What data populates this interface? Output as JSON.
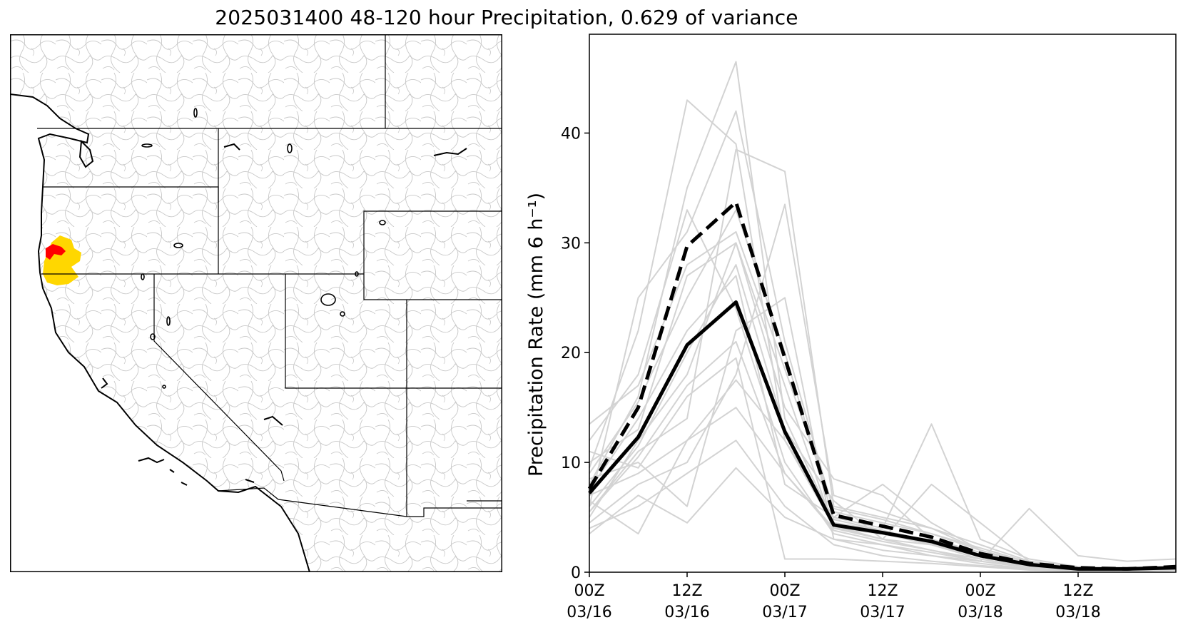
{
  "figure": {
    "title": "2025031400 48-120 hour Precipitation, 0.629 of variance"
  },
  "map": {
    "highlight_colors": {
      "gold": "#ffd700",
      "red": "#ff0000"
    },
    "basin_line_color": "#bdbdbd"
  },
  "chart_data": {
    "type": "line",
    "title": "",
    "xlabel": "",
    "ylabel": "Precipitation Rate (mm 6 h⁻¹)",
    "ylim": [
      0,
      49
    ],
    "yticks": [
      0,
      10,
      20,
      30,
      40
    ],
    "x": [
      "03/16 00Z",
      "03/16 06Z",
      "03/16 12Z",
      "03/16 18Z",
      "03/17 00Z",
      "03/17 06Z",
      "03/17 12Z",
      "03/17 18Z",
      "03/18 00Z",
      "03/18 06Z",
      "03/18 12Z",
      "03/18 18Z",
      "03/19 00Z"
    ],
    "xticks": [
      {
        "line1": "00Z",
        "line2": "03/16"
      },
      {
        "line1": "12Z",
        "line2": "03/16"
      },
      {
        "line1": "00Z",
        "line2": "03/17"
      },
      {
        "line1": "12Z",
        "line2": "03/17"
      },
      {
        "line1": "00Z",
        "line2": "03/18"
      },
      {
        "line1": "12Z",
        "line2": "03/18"
      }
    ],
    "grid": false,
    "series": [
      {
        "style": "solid-thick",
        "color": "#000000",
        "values": [
          7.2,
          12.3,
          20.7,
          24.6,
          12.8,
          4.3,
          3.6,
          2.8,
          1.5,
          0.7,
          0.3,
          0.3,
          0.4
        ]
      },
      {
        "style": "dashed-thick",
        "color": "#000000",
        "values": [
          7.6,
          15.0,
          29.7,
          33.7,
          19.5,
          5.2,
          4.2,
          3.2,
          1.7,
          0.8,
          0.4,
          0.3,
          0.5
        ]
      },
      {
        "style": "member",
        "color": "#d3d3d3",
        "values": [
          7.0,
          9.0,
          12.0,
          15.0,
          9.0,
          4.0,
          3.5,
          2.5,
          1.2,
          0.5,
          0.2,
          0.2,
          0.3
        ]
      },
      {
        "style": "member",
        "color": "#d3d3d3",
        "values": [
          8.0,
          16.0,
          35.0,
          46.5,
          14.0,
          4.5,
          3.8,
          2.8,
          1.5,
          0.6,
          0.3,
          0.2,
          0.4
        ]
      },
      {
        "style": "member",
        "color": "#d3d3d3",
        "values": [
          9.5,
          22.0,
          43.0,
          39.0,
          12.0,
          4.2,
          3.0,
          2.0,
          1.0,
          0.5,
          0.3,
          0.2,
          0.3
        ]
      },
      {
        "style": "member",
        "color": "#d3d3d3",
        "values": [
          6.0,
          25.0,
          31.0,
          42.0,
          21.0,
          5.5,
          4.5,
          3.5,
          2.0,
          0.8,
          0.4,
          0.3,
          0.5
        ]
      },
      {
        "style": "member",
        "color": "#d3d3d3",
        "values": [
          5.5,
          11.0,
          14.0,
          38.5,
          36.5,
          6.0,
          5.0,
          4.0,
          2.5,
          1.0,
          0.4,
          0.3,
          0.5
        ]
      },
      {
        "style": "member",
        "color": "#d3d3d3",
        "values": [
          10.0,
          13.0,
          27.0,
          30.0,
          17.0,
          4.0,
          3.0,
          2.5,
          1.5,
          0.6,
          0.3,
          0.2,
          0.4
        ]
      },
      {
        "style": "member",
        "color": "#d3d3d3",
        "values": [
          12.0,
          18.0,
          33.0,
          24.0,
          10.0,
          3.5,
          2.5,
          1.8,
          1.0,
          0.4,
          0.2,
          0.2,
          0.3
        ]
      },
      {
        "style": "member",
        "color": "#d3d3d3",
        "values": [
          4.5,
          8.0,
          10.0,
          18.0,
          33.5,
          7.0,
          5.5,
          4.0,
          2.0,
          0.7,
          0.3,
          0.2,
          0.4
        ]
      },
      {
        "style": "member",
        "color": "#d3d3d3",
        "values": [
          3.5,
          7.0,
          4.5,
          9.5,
          5.0,
          3.0,
          2.0,
          1.5,
          0.8,
          0.3,
          0.2,
          0.1,
          0.2
        ]
      },
      {
        "style": "member",
        "color": "#d3d3d3",
        "values": [
          6.5,
          3.5,
          12.0,
          17.5,
          12.0,
          5.0,
          4.0,
          13.5,
          3.0,
          1.2,
          0.5,
          0.3,
          0.4
        ]
      },
      {
        "style": "member",
        "color": "#d3d3d3",
        "values": [
          8.5,
          10.0,
          6.0,
          22.0,
          25.0,
          3.0,
          2.5,
          1.5,
          1.0,
          5.8,
          1.5,
          1.0,
          1.2
        ]
      },
      {
        "style": "member",
        "color": "#d3d3d3",
        "values": [
          5.0,
          12.0,
          18.0,
          30.0,
          15.0,
          8.5,
          7.0,
          3.0,
          1.8,
          0.7,
          0.3,
          0.2,
          0.3
        ]
      },
      {
        "style": "member",
        "color": "#d3d3d3",
        "values": [
          7.5,
          14.0,
          22.0,
          27.0,
          8.0,
          5.0,
          8.0,
          4.5,
          2.0,
          0.8,
          0.4,
          0.2,
          0.4
        ]
      },
      {
        "style": "member",
        "color": "#d3d3d3",
        "values": [
          11.0,
          9.5,
          16.0,
          19.5,
          1.2,
          1.2,
          1.0,
          0.8,
          0.5,
          0.2,
          0.1,
          0.1,
          0.2
        ]
      },
      {
        "style": "member",
        "color": "#d3d3d3",
        "values": [
          6.0,
          11.5,
          20.0,
          28.0,
          13.0,
          6.5,
          3.0,
          8.0,
          4.5,
          1.0,
          0.4,
          0.3,
          0.5
        ]
      },
      {
        "style": "member",
        "color": "#d3d3d3",
        "values": [
          4.0,
          6.0,
          9.0,
          12.0,
          6.0,
          2.5,
          1.5,
          1.0,
          0.6,
          0.3,
          0.2,
          0.1,
          0.2
        ]
      },
      {
        "style": "member",
        "color": "#d3d3d3",
        "values": [
          9.0,
          15.5,
          25.0,
          33.0,
          20.0,
          4.8,
          3.8,
          2.6,
          1.4,
          0.6,
          0.3,
          0.2,
          0.3
        ]
      },
      {
        "style": "member",
        "color": "#d3d3d3",
        "values": [
          5.5,
          10.5,
          17.0,
          21.0,
          9.0,
          3.8,
          2.8,
          2.0,
          1.2,
          0.5,
          0.2,
          0.1,
          0.3
        ]
      },
      {
        "style": "member",
        "color": "#d3d3d3",
        "values": [
          13.5,
          17.0,
          28.0,
          31.0,
          18.5,
          5.8,
          4.8,
          3.5,
          2.2,
          0.9,
          0.4,
          0.3,
          0.4
        ]
      }
    ]
  }
}
